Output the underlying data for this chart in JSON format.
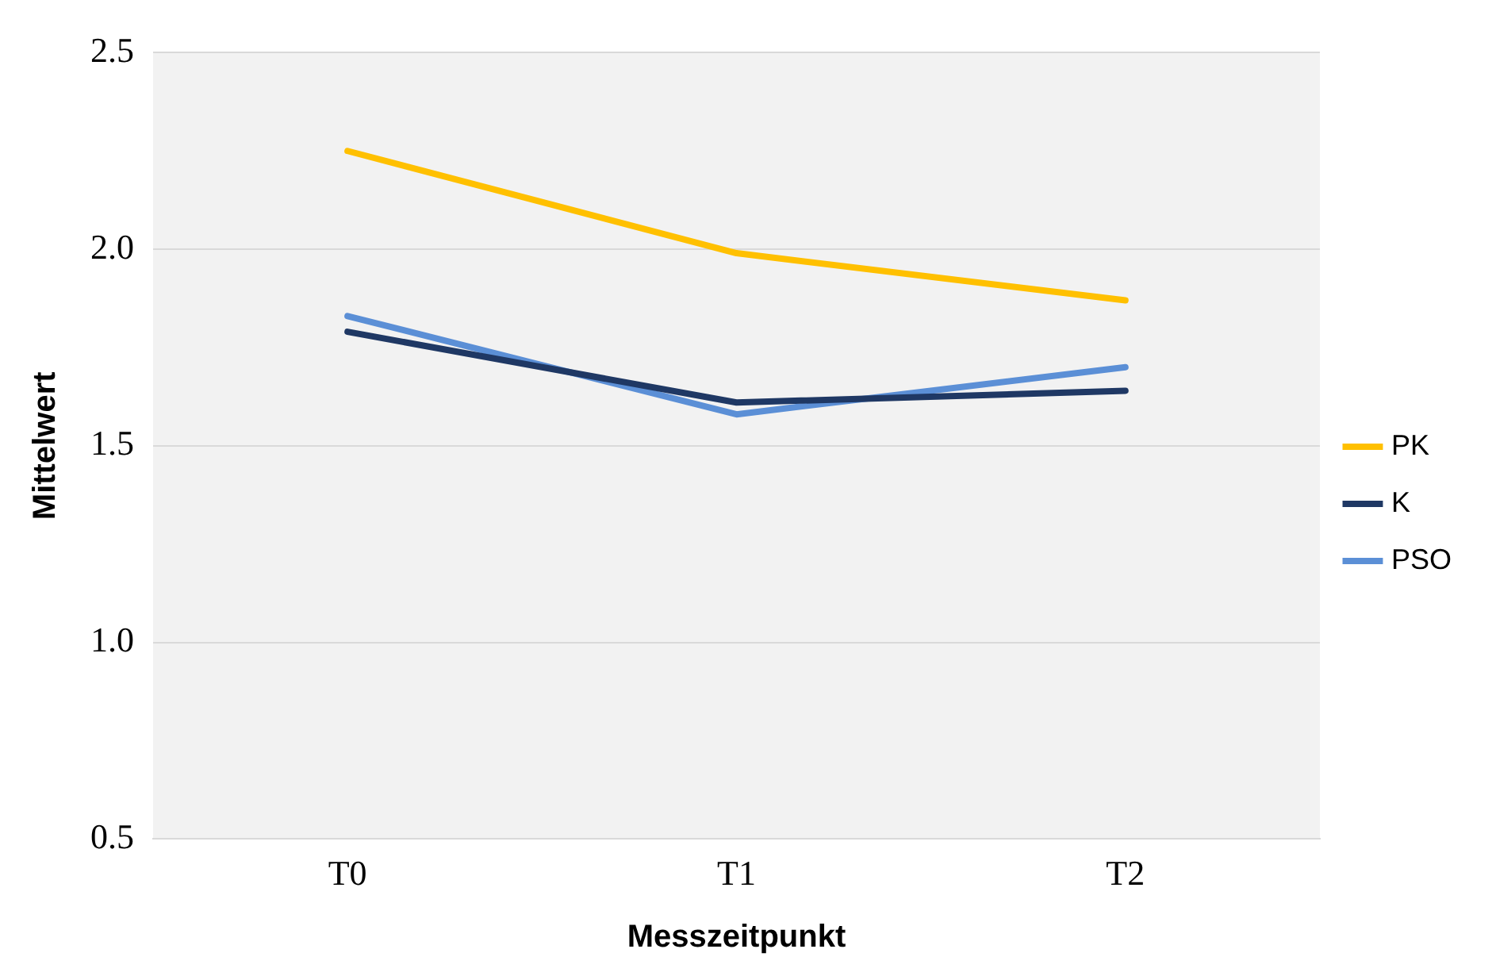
{
  "chart_data": {
    "type": "line",
    "xlabel": "Messzeitpunkt",
    "ylabel": "Mittelwert",
    "categories": [
      "T0",
      "T1",
      "T2"
    ],
    "series": [
      {
        "name": "PK",
        "color": "#ffc000",
        "values": [
          2.25,
          1.99,
          1.87
        ]
      },
      {
        "name": "K",
        "color": "#1f3864",
        "values": [
          1.79,
          1.61,
          1.64
        ]
      },
      {
        "name": "PSO",
        "color": "#5b8fd6",
        "values": [
          1.83,
          1.58,
          1.7
        ]
      }
    ],
    "ylim": [
      0.5,
      2.5
    ],
    "yticks": [
      {
        "value": 0.5,
        "label": "0.5"
      },
      {
        "value": 1,
        "label": "1.0"
      },
      {
        "value": 1.5,
        "label": "1.5"
      },
      {
        "value": 2,
        "label": "2.0"
      },
      {
        "value": 2.5,
        "label": "2.5"
      }
    ],
    "grid": "y",
    "legend": "right",
    "marker": "none",
    "line_style": "solid"
  }
}
